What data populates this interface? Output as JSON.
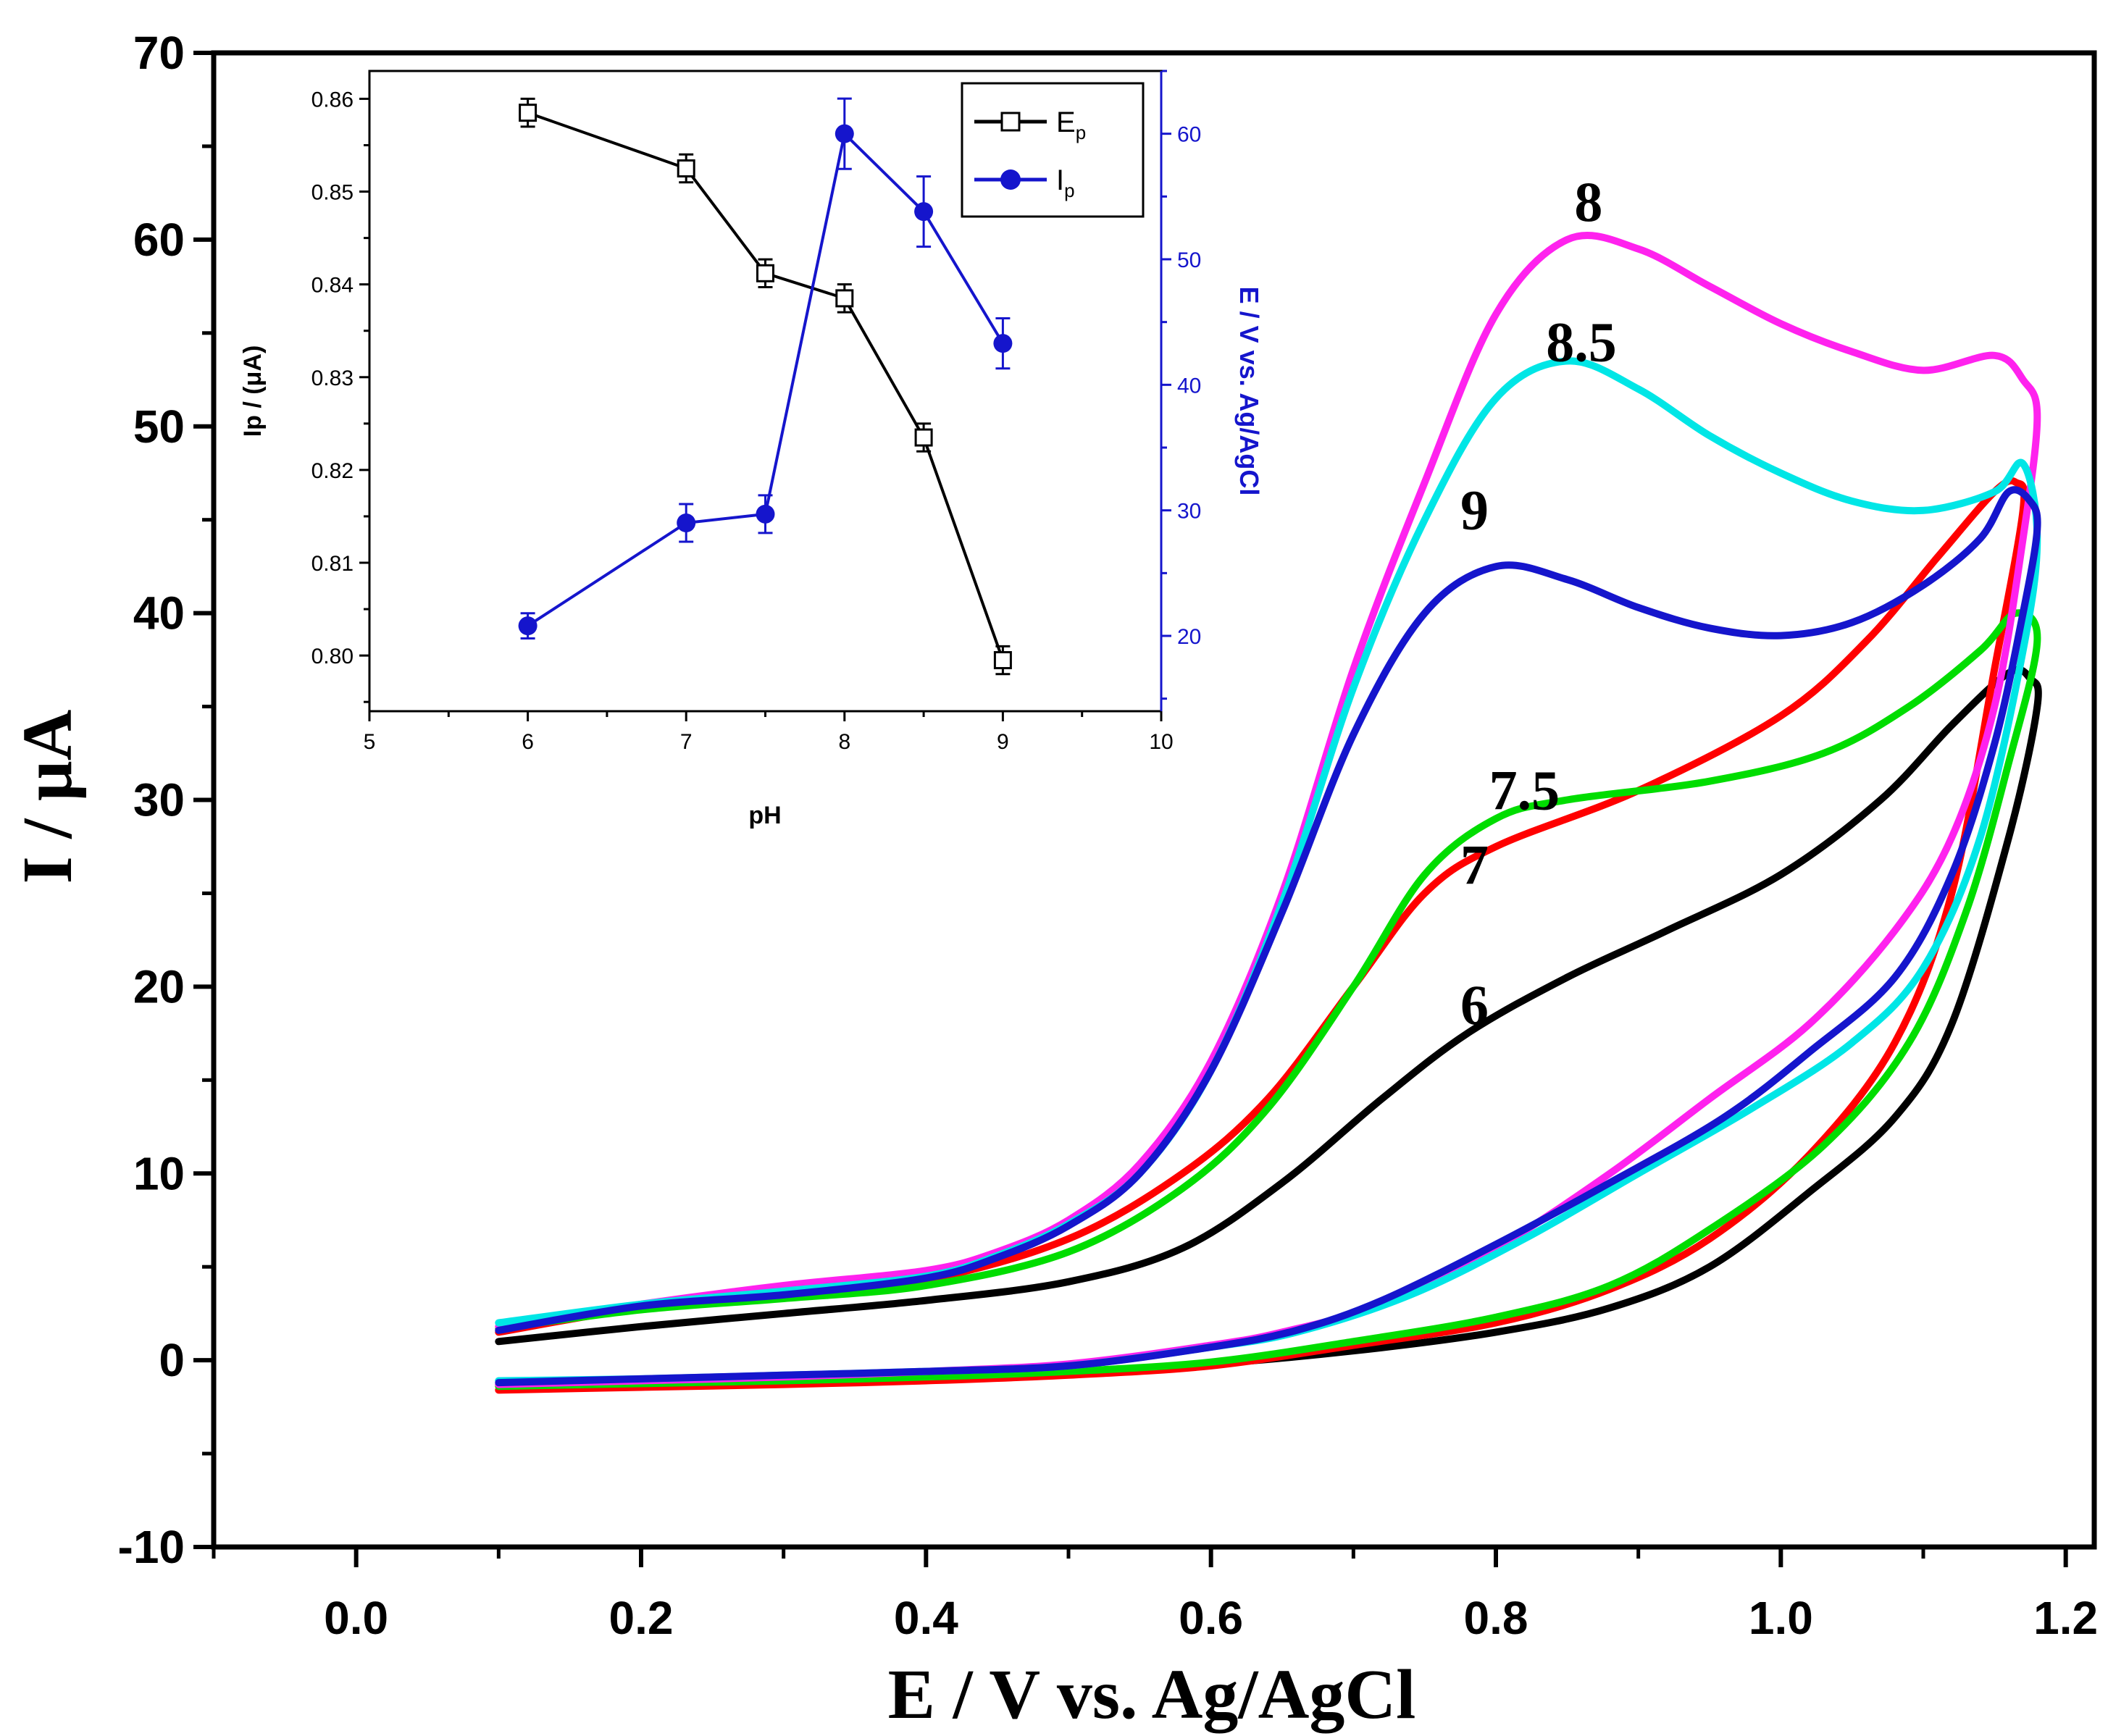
{
  "chart_data": [
    {
      "type": "line",
      "title": "",
      "xlabel": "E / V vs. Ag/AgCl",
      "ylabel": "I / μA",
      "xlim": [
        -0.1,
        1.22
      ],
      "ylim": [
        -10,
        70
      ],
      "xticks": [
        "0.0",
        "0.2",
        "0.4",
        "0.6",
        "0.8",
        "1.0",
        "1.2"
      ],
      "yticks": [
        "-10",
        "0",
        "10",
        "20",
        "30",
        "40",
        "50",
        "60",
        "70"
      ],
      "grid": false,
      "series": [
        {
          "name": "6",
          "color": "#000000",
          "forward": [
            [
              0.1,
              1.0
            ],
            [
              0.2,
              1.8
            ],
            [
              0.3,
              2.5
            ],
            [
              0.4,
              3.2
            ],
            [
              0.5,
              4.2
            ],
            [
              0.58,
              6.0
            ],
            [
              0.65,
              9.5
            ],
            [
              0.72,
              14.0
            ],
            [
              0.78,
              17.5
            ],
            [
              0.85,
              20.5
            ],
            [
              0.92,
              23.0
            ],
            [
              1.0,
              26.0
            ],
            [
              1.07,
              30.0
            ],
            [
              1.12,
              34.0
            ],
            [
              1.16,
              36.8
            ],
            [
              1.175,
              36.5
            ]
          ],
          "reverse": [
            [
              1.18,
              35.0
            ],
            [
              1.16,
              28.0
            ],
            [
              1.12,
              18.0
            ],
            [
              1.08,
              13.0
            ],
            [
              1.02,
              9.0
            ],
            [
              0.95,
              5.0
            ],
            [
              0.88,
              2.8
            ],
            [
              0.8,
              1.5
            ],
            [
              0.7,
              0.5
            ],
            [
              0.6,
              -0.2
            ],
            [
              0.5,
              -0.6
            ],
            [
              0.4,
              -0.9
            ],
            [
              0.3,
              -1.1
            ],
            [
              0.2,
              -1.2
            ],
            [
              0.1,
              -1.3
            ]
          ]
        },
        {
          "name": "7",
          "color": "#ff0000",
          "forward": [
            [
              0.1,
              1.5
            ],
            [
              0.2,
              2.8
            ],
            [
              0.3,
              3.5
            ],
            [
              0.4,
              4.3
            ],
            [
              0.5,
              6.5
            ],
            [
              0.58,
              10.0
            ],
            [
              0.64,
              14.0
            ],
            [
              0.7,
              20.0
            ],
            [
              0.75,
              25.0
            ],
            [
              0.8,
              27.5
            ],
            [
              0.9,
              30.5
            ],
            [
              1.0,
              34.5
            ],
            [
              1.06,
              38.5
            ],
            [
              1.11,
              43.0
            ],
            [
              1.15,
              46.5
            ],
            [
              1.165,
              47.0
            ]
          ],
          "reverse": [
            [
              1.17,
              45.5
            ],
            [
              1.15,
              37.0
            ],
            [
              1.12,
              25.0
            ],
            [
              1.08,
              17.0
            ],
            [
              1.02,
              11.0
            ],
            [
              0.95,
              6.5
            ],
            [
              0.88,
              3.8
            ],
            [
              0.8,
              2.0
            ],
            [
              0.7,
              0.8
            ],
            [
              0.6,
              -0.3
            ],
            [
              0.5,
              -0.8
            ],
            [
              0.4,
              -1.1
            ],
            [
              0.3,
              -1.3
            ],
            [
              0.2,
              -1.45
            ],
            [
              0.1,
              -1.6
            ]
          ]
        },
        {
          "name": "7.5",
          "color": "#00dd00",
          "forward": [
            [
              0.1,
              1.7
            ],
            [
              0.2,
              2.7
            ],
            [
              0.3,
              3.3
            ],
            [
              0.4,
              4.0
            ],
            [
              0.5,
              5.8
            ],
            [
              0.58,
              9.2
            ],
            [
              0.64,
              13.5
            ],
            [
              0.7,
              20.0
            ],
            [
              0.75,
              26.0
            ],
            [
              0.8,
              29.0
            ],
            [
              0.85,
              30.0
            ],
            [
              0.95,
              31.0
            ],
            [
              1.03,
              32.5
            ],
            [
              1.09,
              35.0
            ],
            [
              1.14,
              38.0
            ],
            [
              1.165,
              40.0
            ]
          ],
          "reverse": [
            [
              1.18,
              38.5
            ],
            [
              1.16,
              32.0
            ],
            [
              1.13,
              24.0
            ],
            [
              1.09,
              17.0
            ],
            [
              1.03,
              11.5
            ],
            [
              0.95,
              7.0
            ],
            [
              0.88,
              4.0
            ],
            [
              0.8,
              2.3
            ],
            [
              0.7,
              1.0
            ],
            [
              0.6,
              -0.1
            ],
            [
              0.5,
              -0.6
            ],
            [
              0.4,
              -0.9
            ],
            [
              0.3,
              -1.1
            ],
            [
              0.2,
              -1.25
            ],
            [
              0.1,
              -1.4
            ]
          ]
        },
        {
          "name": "8",
          "color": "#ff22ee",
          "forward": [
            [
              0.1,
              1.8
            ],
            [
              0.2,
              3.0
            ],
            [
              0.3,
              4.0
            ],
            [
              0.4,
              4.8
            ],
            [
              0.45,
              5.8
            ],
            [
              0.5,
              7.5
            ],
            [
              0.55,
              10.5
            ],
            [
              0.6,
              16.0
            ],
            [
              0.65,
              25.0
            ],
            [
              0.7,
              37.0
            ],
            [
              0.75,
              47.0
            ],
            [
              0.8,
              56.0
            ],
            [
              0.85,
              60.0
            ],
            [
              0.9,
              59.5
            ],
            [
              0.95,
              57.5
            ],
            [
              1.0,
              55.5
            ],
            [
              1.05,
              54.0
            ],
            [
              1.1,
              53.0
            ],
            [
              1.15,
              53.8
            ],
            [
              1.17,
              52.5
            ]
          ],
          "reverse": [
            [
              1.18,
              50.5
            ],
            [
              1.17,
              44.0
            ],
            [
              1.15,
              35.0
            ],
            [
              1.12,
              28.0
            ],
            [
              1.08,
              23.0
            ],
            [
              1.02,
              18.0
            ],
            [
              0.95,
              14.0
            ],
            [
              0.88,
              10.0
            ],
            [
              0.8,
              6.0
            ],
            [
              0.72,
              3.0
            ],
            [
              0.65,
              1.5
            ],
            [
              0.6,
              0.8
            ],
            [
              0.5,
              -0.2
            ],
            [
              0.4,
              -0.6
            ],
            [
              0.3,
              -0.9
            ],
            [
              0.2,
              -1.1
            ],
            [
              0.1,
              -1.3
            ]
          ]
        },
        {
          "name": "8.5",
          "color": "#00e6e6",
          "forward": [
            [
              0.1,
              2.0
            ],
            [
              0.2,
              3.0
            ],
            [
              0.3,
              3.7
            ],
            [
              0.4,
              4.5
            ],
            [
              0.45,
              5.6
            ],
            [
              0.5,
              7.3
            ],
            [
              0.55,
              10.0
            ],
            [
              0.6,
              15.5
            ],
            [
              0.65,
              24.5
            ],
            [
              0.7,
              36.0
            ],
            [
              0.75,
              45.0
            ],
            [
              0.8,
              51.5
            ],
            [
              0.85,
              53.5
            ],
            [
              0.9,
              52.0
            ],
            [
              0.95,
              49.5
            ],
            [
              1.0,
              47.5
            ],
            [
              1.05,
              46.0
            ],
            [
              1.1,
              45.5
            ],
            [
              1.15,
              46.5
            ],
            [
              1.17,
              48.0
            ]
          ],
          "reverse": [
            [
              1.18,
              44.0
            ],
            [
              1.17,
              38.0
            ],
            [
              1.14,
              28.0
            ],
            [
              1.1,
              21.0
            ],
            [
              1.05,
              17.0
            ],
            [
              0.98,
              13.5
            ],
            [
              0.9,
              10.0
            ],
            [
              0.82,
              6.5
            ],
            [
              0.74,
              3.5
            ],
            [
              0.66,
              1.5
            ],
            [
              0.6,
              0.7
            ],
            [
              0.5,
              -0.3
            ],
            [
              0.4,
              -0.6
            ],
            [
              0.3,
              -0.8
            ],
            [
              0.2,
              -1.0
            ],
            [
              0.1,
              -1.1
            ]
          ]
        },
        {
          "name": "9",
          "color": "#1515cc",
          "forward": [
            [
              0.1,
              1.6
            ],
            [
              0.2,
              2.9
            ],
            [
              0.3,
              3.5
            ],
            [
              0.4,
              4.4
            ],
            [
              0.45,
              5.5
            ],
            [
              0.5,
              7.2
            ],
            [
              0.55,
              10.0
            ],
            [
              0.6,
              15.5
            ],
            [
              0.65,
              24.0
            ],
            [
              0.7,
              33.5
            ],
            [
              0.75,
              40.0
            ],
            [
              0.8,
              42.5
            ],
            [
              0.85,
              41.8
            ],
            [
              0.9,
              40.3
            ],
            [
              0.95,
              39.2
            ],
            [
              1.0,
              38.8
            ],
            [
              1.05,
              39.5
            ],
            [
              1.1,
              41.5
            ],
            [
              1.14,
              44.0
            ],
            [
              1.16,
              46.5
            ],
            [
              1.175,
              46.0
            ]
          ],
          "reverse": [
            [
              1.18,
              44.5
            ],
            [
              1.17,
              40.0
            ],
            [
              1.15,
              33.0
            ],
            [
              1.12,
              26.0
            ],
            [
              1.08,
              20.5
            ],
            [
              1.02,
              16.5
            ],
            [
              0.96,
              13.0
            ],
            [
              0.88,
              9.5
            ],
            [
              0.8,
              6.2
            ],
            [
              0.72,
              3.2
            ],
            [
              0.66,
              1.6
            ],
            [
              0.6,
              0.7
            ],
            [
              0.5,
              -0.3
            ],
            [
              0.4,
              -0.6
            ],
            [
              0.3,
              -0.8
            ],
            [
              0.2,
              -1.0
            ],
            [
              0.1,
              -1.2
            ]
          ]
        }
      ],
      "annotations": [
        {
          "text": "8",
          "x": 0.865,
          "y": 61.0
        },
        {
          "text": "8.5",
          "x": 0.86,
          "y": 53.5
        },
        {
          "text": "9",
          "x": 0.785,
          "y": 44.5
        },
        {
          "text": "7.5",
          "x": 0.82,
          "y": 29.5
        },
        {
          "text": "7",
          "x": 0.785,
          "y": 25.5
        },
        {
          "text": "6",
          "x": 0.785,
          "y": 18.0
        }
      ]
    },
    {
      "type": "line",
      "title": "",
      "xlabel": "pH",
      "ylabel": "Ip / (μA)",
      "y2label": "E / V vs. Ag/AgCl",
      "xlim": [
        5,
        10
      ],
      "ylim": [
        0.794,
        0.863
      ],
      "y2lim": [
        14,
        65
      ],
      "xticks": [
        "5",
        "6",
        "7",
        "8",
        "9",
        "10"
      ],
      "yticks": [
        "0.80",
        "0.81",
        "0.82",
        "0.83",
        "0.84",
        "0.85",
        "0.86"
      ],
      "y2ticks": [
        "20",
        "30",
        "40",
        "50",
        "60"
      ],
      "legend": "top-right",
      "series": [
        {
          "name": "E",
          "subscript": "p",
          "axis": "left",
          "marker": "open-square",
          "color": "#000000",
          "x": [
            6,
            7,
            7.5,
            8,
            8.5,
            9
          ],
          "y": [
            0.8585,
            0.8525,
            0.8412,
            0.8385,
            0.8235,
            0.7995
          ],
          "err": [
            0.0015,
            0.0015,
            0.0015,
            0.0015,
            0.0015,
            0.0015
          ]
        },
        {
          "name": "I",
          "subscript": "p",
          "axis": "right",
          "marker": "filled-circle",
          "color": "#1515cc",
          "x": [
            6,
            7,
            7.5,
            8,
            8.5,
            9
          ],
          "y": [
            20.8,
            29.0,
            29.7,
            60.0,
            53.8,
            43.3
          ],
          "err": [
            1.0,
            1.5,
            1.5,
            2.8,
            2.8,
            2.0
          ]
        }
      ]
    }
  ]
}
